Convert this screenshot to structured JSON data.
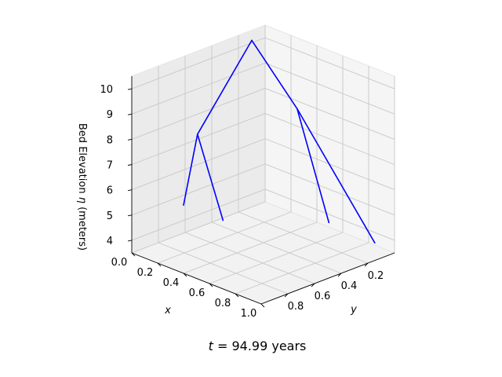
{
  "chart_data": {
    "type": "line3d",
    "title": "",
    "time_label": {
      "var": "t",
      "eq": " = ",
      "value": "94.99",
      "unit": " years"
    },
    "axes": {
      "x": {
        "label": "x",
        "ticks": [
          "0.0",
          "0.2",
          "0.4",
          "0.6",
          "0.8",
          "1.0"
        ]
      },
      "y": {
        "label": "y",
        "ticks": [
          "0.2",
          "0.4",
          "0.6",
          "0.8"
        ]
      },
      "z": {
        "label_pre": "Bed Elevation ",
        "label_sym": "η",
        "label_post": " (meters)",
        "ticks": [
          "4",
          "5",
          "6",
          "7",
          "8",
          "9",
          "10"
        ]
      }
    },
    "grid": true,
    "series_color": "#0000ff",
    "segments": [
      {
        "from": [
          0.0,
          0.1,
          10.1
        ],
        "to": [
          0.35,
          0.1,
          8.1
        ]
      },
      {
        "from": [
          0.35,
          0.1,
          8.1
        ],
        "to": [
          0.95,
          0.1,
          4.0
        ]
      },
      {
        "from": [
          0.35,
          0.1,
          8.1
        ],
        "to": [
          0.75,
          0.25,
          4.7
        ]
      },
      {
        "from": [
          0.0,
          0.1,
          10.1
        ],
        "to": [
          0.25,
          0.75,
          8.2
        ]
      },
      {
        "from": [
          0.25,
          0.75,
          8.2
        ],
        "to": [
          0.55,
          0.85,
          5.6
        ]
      },
      {
        "from": [
          0.25,
          0.75,
          8.2
        ],
        "to": [
          0.4,
          1.0,
          6.2
        ]
      }
    ]
  }
}
